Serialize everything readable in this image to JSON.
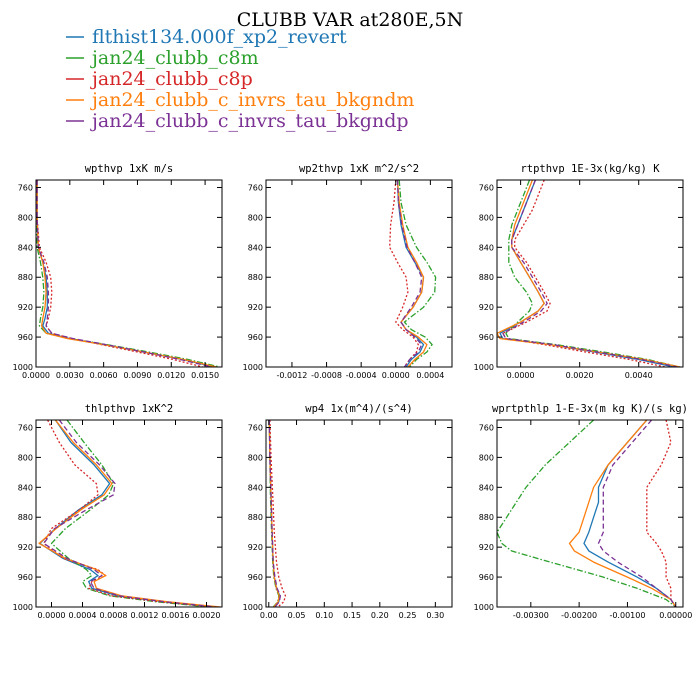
{
  "figure": {
    "title": "CLUBB VAR at280E,5N"
  },
  "legend": [
    {
      "name": "flthist134.000f_xp2_revert",
      "color": "#1f77b4",
      "dash": "solid"
    },
    {
      "name": "jan24_clubb_c8m",
      "color": "#2ca02c",
      "dash": "dashdot"
    },
    {
      "name": "jan24_clubb_c8p",
      "color": "#d62728",
      "dash": "dot"
    },
    {
      "name": "jan24_clubb_c_invrs_tau_bkgndm",
      "color": "#ff7f0e",
      "dash": "solid"
    },
    {
      "name": "jan24_clubb_c_invrs_tau_bkgndp",
      "color": "#7b3294",
      "dash": "dash"
    }
  ],
  "chart_data": [
    {
      "type": "line",
      "title": "wpthvp  1xK m/s",
      "xlim": [
        0.0,
        0.0165
      ],
      "ylim": [
        1000,
        750
      ],
      "xticks": [
        0.0,
        0.003,
        0.006,
        0.009,
        0.012,
        0.015
      ],
      "xticklabels": [
        "0.0000",
        "0.0030",
        "0.0060",
        "0.0090",
        "0.0120",
        "0.0150"
      ],
      "yticks": [
        760,
        800,
        840,
        880,
        920,
        960,
        1000
      ],
      "yticklabels": [
        "760",
        "800",
        "840",
        "880",
        "920",
        "960",
        "1000"
      ],
      "p": [
        750,
        800,
        840,
        860,
        880,
        900,
        920,
        935,
        945,
        955,
        962,
        970,
        980,
        990,
        1000
      ],
      "series": [
        {
          "values": [
            0.0001,
            0.0001,
            0.0002,
            0.0006,
            0.0009,
            0.001,
            0.001,
            0.0008,
            0.0006,
            0.0011,
            0.003,
            0.006,
            0.0095,
            0.013,
            0.0158
          ]
        },
        {
          "values": [
            0.0001,
            0.0001,
            0.0001,
            0.0004,
            0.0006,
            0.0007,
            0.0006,
            0.0004,
            0.0003,
            0.0009,
            0.003,
            0.0063,
            0.01,
            0.0135,
            0.0163
          ]
        },
        {
          "values": [
            0.0001,
            0.0001,
            0.0003,
            0.0009,
            0.0013,
            0.0014,
            0.0013,
            0.0011,
            0.0009,
            0.0014,
            0.0032,
            0.0058,
            0.009,
            0.0122,
            0.0148
          ]
        },
        {
          "values": [
            0.0001,
            0.0001,
            0.0002,
            0.0006,
            0.0008,
            0.0009,
            0.0008,
            0.0006,
            0.0005,
            0.0009,
            0.0028,
            0.006,
            0.0096,
            0.0131,
            0.016
          ]
        },
        {
          "values": [
            0.0001,
            0.0001,
            0.0002,
            0.0007,
            0.001,
            0.0011,
            0.0011,
            0.001,
            0.0009,
            0.0014,
            0.0033,
            0.0062,
            0.0096,
            0.0128,
            0.0156
          ]
        }
      ]
    },
    {
      "type": "line",
      "title": "wp2thvp  1xK m^2/s^2",
      "xlim": [
        -0.0015,
        0.00065
      ],
      "ylim": [
        1000,
        750
      ],
      "xticks": [
        -0.0012,
        -0.0008,
        -0.0004,
        0.0,
        0.0004
      ],
      "xticklabels": [
        "-0.0012",
        "-0.0008",
        "-0.0004",
        "0.0000",
        "0.0004"
      ],
      "yticks": [
        760,
        800,
        840,
        880,
        920,
        960,
        1000
      ],
      "yticklabels": [
        "760",
        "800",
        "840",
        "880",
        "920",
        "960",
        "1000"
      ],
      "p": [
        750,
        780,
        810,
        840,
        860,
        880,
        900,
        920,
        940,
        950,
        960,
        970,
        980,
        990,
        1000
      ],
      "series": [
        {
          "values": [
            2e-05,
            3e-05,
            6e-05,
            0.00012,
            0.00022,
            0.00032,
            0.0003,
            0.0002,
            6e-05,
            0.00012,
            0.00024,
            0.00032,
            0.00028,
            0.00018,
            0.00012
          ]
        },
        {
          "values": [
            4e-05,
            6e-05,
            0.00012,
            0.00024,
            0.00036,
            0.00046,
            0.00045,
            0.00032,
            0.0001,
            0.00018,
            0.00034,
            0.00042,
            0.00036,
            0.00024,
            0.00016
          ]
        },
        {
          "values": [
            0.0,
            -2e-05,
            -6e-05,
            -7e-05,
            2e-05,
            0.00012,
            0.00014,
            8e-05,
            0.0,
            8e-05,
            0.0002,
            0.00026,
            0.00024,
            0.00016,
            0.0001
          ]
        },
        {
          "values": [
            2e-05,
            4e-05,
            8e-05,
            0.00014,
            0.00024,
            0.00032,
            0.0003,
            0.0002,
            6e-05,
            0.00012,
            0.00026,
            0.00036,
            0.00032,
            0.00022,
            0.00014
          ]
        },
        {
          "values": [
            2e-05,
            3e-05,
            7e-05,
            0.00013,
            0.00022,
            0.0003,
            0.00028,
            0.00018,
            6e-05,
            0.00012,
            0.00022,
            0.0003,
            0.00026,
            0.00016,
            0.0001
          ]
        }
      ]
    },
    {
      "type": "line",
      "title": "rtpthvp  1E-3x(kg/kg) K",
      "xlim": [
        -0.0008,
        0.0055
      ],
      "ylim": [
        1000,
        750
      ],
      "xticks": [
        0.0,
        0.002,
        0.004
      ],
      "xticklabels": [
        "0.0000",
        "0.0020",
        "0.0040"
      ],
      "yticks": [
        760,
        800,
        840,
        880,
        920,
        960,
        1000
      ],
      "yticklabels": [
        "760",
        "800",
        "840",
        "880",
        "920",
        "960",
        "1000"
      ],
      "p": [
        750,
        770,
        790,
        810,
        830,
        840,
        860,
        880,
        900,
        915,
        925,
        940,
        955,
        962,
        970,
        980,
        990,
        1000
      ],
      "series": [
        {
          "values": [
            0.0005,
            0.0003,
            0.0001,
            -0.0001,
            -0.0003,
            -0.0003,
            0.0,
            0.0003,
            0.0006,
            0.0008,
            0.0006,
            0.0,
            -0.0007,
            -0.0006,
            0.001,
            0.0025,
            0.004,
            0.0052
          ]
        },
        {
          "values": [
            0.0003,
            0.0001,
            -0.0001,
            -0.0003,
            -0.0004,
            -0.0004,
            -0.0004,
            -0.0002,
            0.0002,
            0.0004,
            0.0003,
            -0.0001,
            -0.0005,
            -0.0004,
            0.0012,
            0.0028,
            0.0043,
            0.0054
          ]
        },
        {
          "values": [
            0.0008,
            0.0006,
            0.0004,
            0.0001,
            -0.0002,
            -0.0002,
            0.0002,
            0.0005,
            0.0008,
            0.001,
            0.0009,
            0.0002,
            -0.0006,
            -0.0005,
            0.0008,
            0.0022,
            0.0037,
            0.0049
          ]
        },
        {
          "values": [
            0.0004,
            0.0002,
            0.0,
            -0.0002,
            -0.0003,
            -0.0003,
            0.0,
            0.0003,
            0.0006,
            0.0008,
            0.0006,
            0.0,
            -0.0008,
            -0.0007,
            0.001,
            0.0026,
            0.0042,
            0.0054
          ]
        },
        {
          "values": [
            0.0005,
            0.0003,
            0.0001,
            -0.0001,
            -0.0003,
            -0.0003,
            0.0001,
            0.0004,
            0.0007,
            0.0009,
            0.0007,
            0.0001,
            -0.0006,
            -0.0005,
            0.0011,
            0.0026,
            0.0041,
            0.0053
          ]
        }
      ]
    },
    {
      "type": "line",
      "title": "thlpthvp  1xK^2",
      "xlim": [
        -0.0002,
        0.0022
      ],
      "ylim": [
        1000,
        750
      ],
      "xticks": [
        0.0,
        0.0004,
        0.0008,
        0.0012,
        0.0016,
        0.002
      ],
      "xticklabels": [
        "0.0000",
        "0.0004",
        "0.0008",
        "0.0012",
        "0.0016",
        "0.0020"
      ],
      "yticks": [
        760,
        800,
        840,
        880,
        920,
        960,
        1000
      ],
      "yticklabels": [
        "760",
        "800",
        "840",
        "880",
        "920",
        "960",
        "1000"
      ],
      "p": [
        750,
        780,
        810,
        835,
        850,
        870,
        895,
        915,
        935,
        950,
        958,
        966,
        975,
        985,
        993,
        1000
      ],
      "series": [
        {
          "values": [
            5e-05,
            0.00025,
            0.00055,
            0.00075,
            0.00065,
            0.00035,
            5e-05,
            -0.00015,
            0.00015,
            0.0005,
            0.0006,
            0.00048,
            0.00052,
            0.00085,
            0.00145,
            0.00215
          ]
        },
        {
          "values": [
            0.0002,
            0.00042,
            0.00065,
            0.0008,
            0.00074,
            0.0005,
            0.00018,
            0.0,
            0.00022,
            0.00045,
            0.00052,
            0.0004,
            0.00045,
            0.00075,
            0.00135,
            0.00205
          ]
        },
        {
          "values": [
            -5e-05,
            0.0001,
            0.0003,
            0.00058,
            0.0006,
            0.00036,
            0.0,
            -0.0001,
            0.00015,
            0.0006,
            0.0007,
            0.00052,
            0.00048,
            0.00078,
            0.0014,
            0.0021
          ]
        },
        {
          "values": [
            5e-05,
            0.00028,
            0.00058,
            0.00078,
            0.00068,
            0.00038,
            6e-05,
            -0.00016,
            0.00018,
            0.00058,
            0.0007,
            0.00055,
            0.00058,
            0.0009,
            0.0015,
            0.00218
          ]
        },
        {
          "values": [
            0.0001,
            0.00032,
            0.00062,
            0.00082,
            0.0008,
            0.00045,
            4e-05,
            -0.0001,
            0.0002,
            0.00055,
            0.00065,
            0.0005,
            0.00055,
            0.00087,
            0.00146,
            0.00212
          ]
        }
      ]
    },
    {
      "type": "line",
      "title": "wp4  1x(m^4)/(s^4)",
      "xlim": [
        -0.005,
        0.33
      ],
      "ylim": [
        1000,
        750
      ],
      "xticks": [
        0.0,
        0.05,
        0.1,
        0.15,
        0.2,
        0.25,
        0.3
      ],
      "xticklabels": [
        "0.00",
        "0.05",
        "0.10",
        "0.15",
        "0.20",
        "0.25",
        "0.30"
      ],
      "yticks": [
        760,
        800,
        840,
        880,
        920,
        960,
        1000
      ],
      "yticklabels": [
        "760",
        "800",
        "840",
        "880",
        "920",
        "960",
        "1000"
      ],
      "p": [
        750,
        800,
        850,
        900,
        940,
        960,
        975,
        985,
        993,
        1000
      ],
      "series": [
        {
          "values": [
            0.001,
            0.002,
            0.004,
            0.006,
            0.008,
            0.01,
            0.014,
            0.02,
            0.018,
            0.01
          ]
        },
        {
          "values": [
            0.001,
            0.002,
            0.003,
            0.005,
            0.007,
            0.009,
            0.013,
            0.018,
            0.016,
            0.008
          ]
        },
        {
          "values": [
            0.002,
            0.004,
            0.007,
            0.01,
            0.014,
            0.018,
            0.024,
            0.03,
            0.027,
            0.016
          ]
        },
        {
          "values": [
            0.001,
            0.002,
            0.004,
            0.006,
            0.008,
            0.01,
            0.014,
            0.019,
            0.017,
            0.009
          ]
        },
        {
          "values": [
            0.001,
            0.002,
            0.004,
            0.006,
            0.008,
            0.011,
            0.015,
            0.021,
            0.019,
            0.011
          ]
        }
      ]
    },
    {
      "type": "line",
      "title": "wprtpthlp  1-E-3x(m kg K)/(s kg)",
      "xlim": [
        -0.0037,
        0.00015
      ],
      "ylim": [
        1000,
        750
      ],
      "xticks": [
        -0.003,
        -0.002,
        -0.001,
        0.0
      ],
      "xticklabels": [
        "-0.00300",
        "-0.00200",
        "-0.00100",
        "0.00000"
      ],
      "yticks": [
        760,
        800,
        840,
        880,
        920,
        960,
        1000
      ],
      "yticklabels": [
        "760",
        "800",
        "840",
        "880",
        "920",
        "960",
        "1000"
      ],
      "p": [
        750,
        780,
        810,
        840,
        860,
        880,
        900,
        915,
        925,
        940,
        960,
        975,
        990,
        1000
      ],
      "series": [
        {
          "values": [
            -0.0006,
            -0.001,
            -0.0014,
            -0.0016,
            -0.0016,
            -0.0017,
            -0.0018,
            -0.0019,
            -0.0018,
            -0.0014,
            -0.0008,
            -0.0004,
            -0.0001,
            0.0
          ]
        },
        {
          "values": [
            -0.0017,
            -0.0022,
            -0.0027,
            -0.0031,
            -0.0033,
            -0.0035,
            -0.0037,
            -0.0036,
            -0.0034,
            -0.0026,
            -0.0015,
            -0.0008,
            -0.0002,
            0.0
          ]
        },
        {
          "values": [
            -0.0002,
            -0.0001,
            -0.0003,
            -0.0006,
            -0.0006,
            -0.0006,
            -0.0006,
            -0.0004,
            -0.0003,
            -0.0002,
            -0.0002,
            -0.0001,
            -0.0001,
            0.0
          ]
        },
        {
          "values": [
            -0.0006,
            -0.001,
            -0.0014,
            -0.0017,
            -0.0018,
            -0.0019,
            -0.002,
            -0.0022,
            -0.0021,
            -0.0017,
            -0.001,
            -0.0005,
            -0.0001,
            0.0
          ]
        },
        {
          "values": [
            -0.0005,
            -0.0009,
            -0.0013,
            -0.0015,
            -0.0015,
            -0.0015,
            -0.0015,
            -0.0016,
            -0.0015,
            -0.0012,
            -0.0007,
            -0.0004,
            -0.0001,
            0.0
          ]
        }
      ]
    }
  ]
}
